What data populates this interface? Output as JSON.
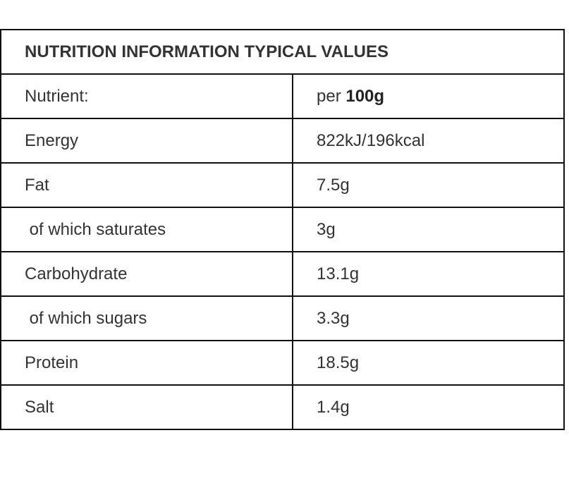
{
  "table": {
    "title": "NUTRITION INFORMATION TYPICAL VALUES",
    "header": {
      "label": "Nutrient:",
      "per": "per",
      "basis": "100g"
    },
    "rows": [
      [
        "Energy",
        "822kJ/196kcal"
      ],
      [
        "Fat",
        "7.5g"
      ],
      [
        " of which saturates",
        "3g"
      ],
      [
        "Carbohydrate",
        "13.1g"
      ],
      [
        " of which sugars",
        "3.3g"
      ],
      [
        "Protein",
        "18.5g"
      ],
      [
        "Salt",
        "1.4g"
      ]
    ]
  }
}
